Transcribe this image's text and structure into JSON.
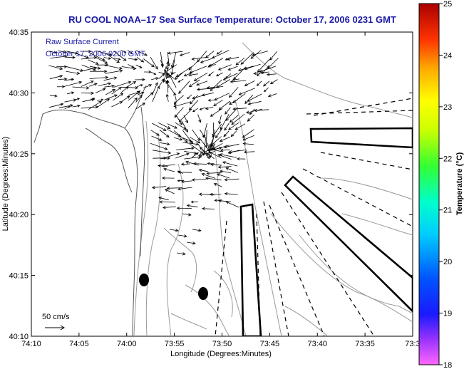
{
  "title": "RU COOL  NOAA–17  Sea Surface Temperature:  October 17, 2006 0231 GMT",
  "legend": {
    "line1": "Raw Surface Current",
    "line2": "October 17, 2006 0200 GMT"
  },
  "scale_label": "50 cm/s",
  "axes": {
    "xlabel": "Longitude (Degrees:Minutes)",
    "ylabel": "Latitude (Degrees:Minutes)",
    "x_ticks": [
      "74:10",
      "74:05",
      "74:00",
      "73:55",
      "73:50",
      "73:45",
      "73:40",
      "73:35",
      "73:3"
    ],
    "y_ticks": [
      "40:35",
      "40:30",
      "40:25",
      "40:20",
      "40:15",
      "40:10"
    ]
  },
  "colorbar": {
    "title": "Temperature (°C)",
    "ticks": [
      "25",
      "24",
      "23",
      "22",
      "21",
      "20",
      "19",
      "18"
    ],
    "range": [
      18,
      25
    ]
  },
  "colors": {
    "title": "#1a1aa6",
    "contour": "#9a9a9a",
    "coast": "#555555"
  }
}
